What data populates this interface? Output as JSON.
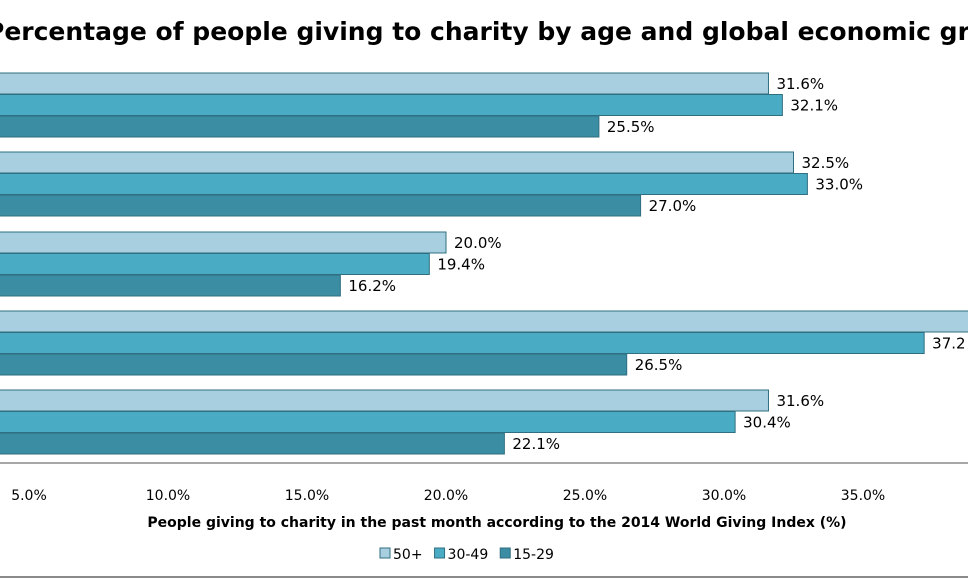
{
  "chart_data": {
    "type": "bar",
    "orientation": "horizontal",
    "title": "Percentage of people giving to charity by age and  global economic group",
    "xlabel": "People giving to charity in the past month according to the 2014 World Giving Index (%)",
    "ylabel": "",
    "xlim": [
      0,
      40
    ],
    "x_ticks": [
      "5.0%",
      "10.0%",
      "15.0%",
      "20.0%",
      "25.0%",
      "30.0%",
      "35.0%"
    ],
    "grid": false,
    "legend_position": "bottom",
    "series": [
      {
        "name": "50+",
        "color": "#a8cfdf",
        "values": [
          31.6,
          32.5,
          20.0,
          39.5,
          31.6
        ],
        "labels": [
          "31.6%",
          "32.5%",
          "20.0%",
          "",
          "31.6%"
        ]
      },
      {
        "name": "30-49",
        "color": "#4aabc5",
        "values": [
          32.1,
          33.0,
          19.4,
          37.2,
          30.4
        ],
        "labels": [
          "32.1%",
          "33.0%",
          "19.4%",
          "37.2",
          "30.4%"
        ]
      },
      {
        "name": "15-29",
        "color": "#3b8da4",
        "values": [
          25.5,
          27.0,
          16.2,
          26.5,
          22.1
        ],
        "labels": [
          "25.5%",
          "27.0%",
          "16.2%",
          "26.5%",
          "22.1%"
        ]
      }
    ]
  }
}
